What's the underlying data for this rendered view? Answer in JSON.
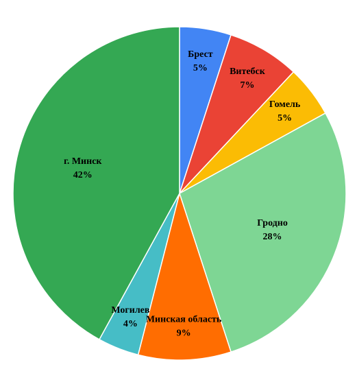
{
  "chart_data": {
    "type": "pie",
    "categories": [
      "Брест",
      "Витебск",
      "Гомель",
      "Гродно",
      "Минская область",
      "Могилев",
      "г. Минск"
    ],
    "values": [
      5,
      7,
      5,
      28,
      9,
      4,
      42
    ],
    "value_labels": [
      "5%",
      "7%",
      "5%",
      "28%",
      "9%",
      "4%",
      "42%"
    ],
    "colors": [
      "#4285f4",
      "#ea4335",
      "#fbbc04",
      "#7ed694",
      "#ff6d01",
      "#46bdc6",
      "#34a853"
    ]
  }
}
